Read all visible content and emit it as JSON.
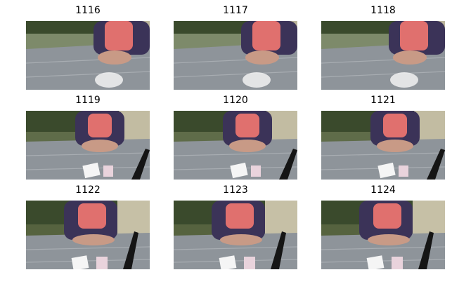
{
  "frames": [
    {
      "title": "1116",
      "variant": "early"
    },
    {
      "title": "1117",
      "variant": "early"
    },
    {
      "title": "1118",
      "variant": "early"
    },
    {
      "title": "1119",
      "variant": "mid"
    },
    {
      "title": "1120",
      "variant": "mid"
    },
    {
      "title": "1121",
      "variant": "mid"
    },
    {
      "title": "1122",
      "variant": "late"
    },
    {
      "title": "1123",
      "variant": "late"
    },
    {
      "title": "1124",
      "variant": "late"
    }
  ],
  "colors": {
    "background": "#ffffff",
    "table": "#8e949a",
    "hedge": "#3a4a2c",
    "shirt": "#e0706e",
    "jacket": "#3b3358",
    "skin": "#c89a86",
    "cards": "#e9d3dc",
    "pole": "#151515"
  }
}
